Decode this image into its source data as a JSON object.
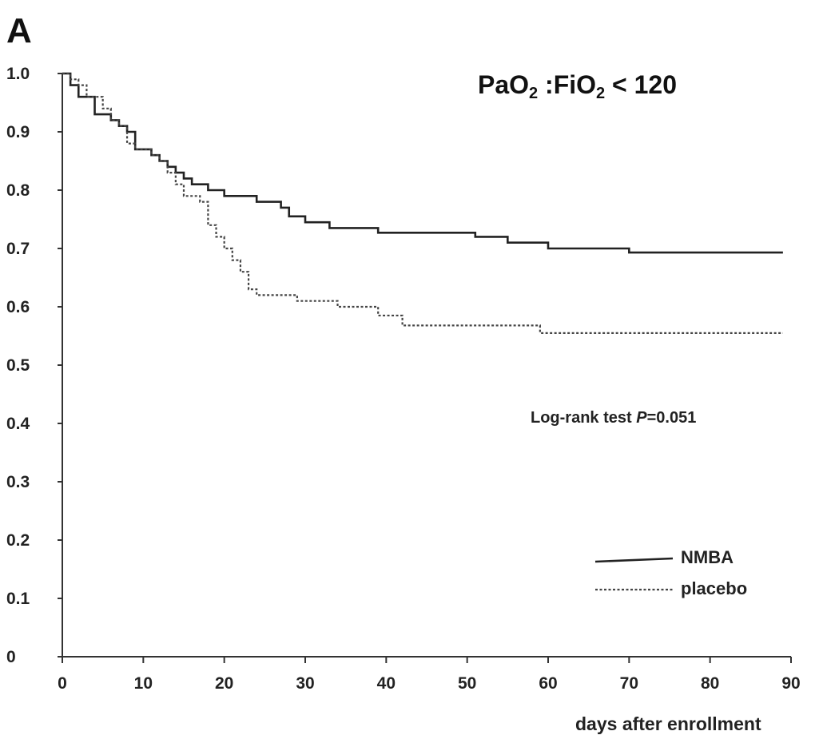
{
  "panel_label": "A",
  "title": {
    "prefix": "PaO",
    "sub1": "2",
    "middle": " :FiO",
    "sub2": "2",
    "suffix": " < 120"
  },
  "annotation": {
    "prefix": "Log-rank test ",
    "p_symbol": "P",
    "suffix": "=0.051"
  },
  "chart_data": {
    "type": "line",
    "xlabel": "days after enrollment",
    "ylabel": "",
    "xlim": [
      0,
      90
    ],
    "ylim": [
      0,
      1.0
    ],
    "x_ticks": [
      "0",
      "10",
      "20",
      "30",
      "40",
      "50",
      "60",
      "70",
      "80",
      "90"
    ],
    "y_ticks": [
      "0",
      "0.1",
      "0.2",
      "0.3",
      "0.4",
      "0.5",
      "0.6",
      "0.7",
      "0.8",
      "0.9",
      "1.0"
    ],
    "grid": false,
    "legend_position": "bottom-right",
    "series": [
      {
        "name": "NMBA",
        "style": "solid",
        "x": [
          0,
          1,
          2,
          4,
          6,
          7,
          8,
          9,
          11,
          12,
          13,
          14,
          15,
          16,
          18,
          20,
          24,
          27,
          28,
          30,
          33,
          39,
          51,
          55,
          60,
          70,
          89
        ],
        "y": [
          1.0,
          0.98,
          0.96,
          0.93,
          0.92,
          0.91,
          0.9,
          0.87,
          0.86,
          0.85,
          0.84,
          0.83,
          0.82,
          0.81,
          0.8,
          0.79,
          0.78,
          0.77,
          0.755,
          0.745,
          0.735,
          0.727,
          0.72,
          0.71,
          0.7,
          0.693,
          0.693
        ]
      },
      {
        "name": "placebo",
        "style": "dashed",
        "x": [
          0,
          1,
          2,
          3,
          5,
          6,
          7,
          8,
          9,
          11,
          12,
          13,
          14,
          15,
          17,
          18,
          19,
          20,
          21,
          22,
          23,
          24,
          29,
          34,
          39,
          42,
          59,
          89
        ],
        "y": [
          1.0,
          0.99,
          0.98,
          0.96,
          0.94,
          0.92,
          0.91,
          0.88,
          0.87,
          0.86,
          0.85,
          0.83,
          0.81,
          0.79,
          0.78,
          0.74,
          0.72,
          0.7,
          0.68,
          0.66,
          0.63,
          0.62,
          0.61,
          0.6,
          0.585,
          0.568,
          0.555,
          0.555
        ]
      }
    ]
  }
}
